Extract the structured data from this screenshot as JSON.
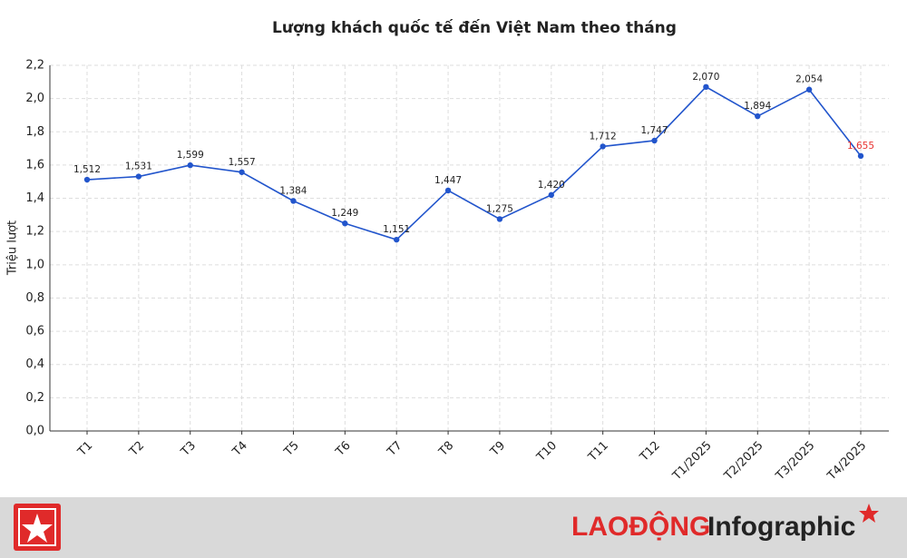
{
  "chart_data": {
    "type": "line",
    "title": "Lượng khách quốc tế đến Việt Nam theo tháng",
    "y_label": "Triệu lượt",
    "categories": [
      "T1",
      "T2",
      "T3",
      "T4",
      "T5",
      "T6",
      "T7",
      "T8",
      "T9",
      "T10",
      "T11",
      "T12",
      "T1/2025",
      "T2/2025",
      "T3/2025",
      "T4/2025"
    ],
    "series": [
      {
        "color": "#2255cc",
        "values": [
          1.512,
          1.531,
          1.599,
          1.557,
          1.384,
          1.249,
          1.151,
          1.447,
          1.275,
          1.42,
          1.712,
          1.747,
          2.07,
          1.894,
          2.054,
          1.655
        ],
        "value_labels": [
          "1,512",
          "1,531",
          "1,599",
          "1,557",
          "1,384",
          "1,249",
          "1,151",
          "1,447",
          "1,275",
          "1,420",
          "1,712",
          "1,747",
          "2,070",
          "1,894",
          "2,054",
          "1,655"
        ]
      }
    ],
    "last_label_color": "#e8312f",
    "ylim": [
      0,
      2.2
    ],
    "yticks": [
      {
        "value": 0,
        "label": "0,0"
      },
      {
        "value": 0.2,
        "label": "0,2"
      },
      {
        "value": 0.4,
        "label": "0,4"
      },
      {
        "value": 0.6,
        "label": "0,6"
      },
      {
        "value": 0.8,
        "label": "0,8"
      },
      {
        "value": 1.0,
        "label": "1,0"
      },
      {
        "value": 1.2,
        "label": "1,2"
      },
      {
        "value": 1.4,
        "label": "1,4"
      },
      {
        "value": 1.6,
        "label": "1,6"
      },
      {
        "value": 1.8,
        "label": "1,8"
      },
      {
        "value": 2.0,
        "label": "2,0"
      },
      {
        "value": 2.2,
        "label": "2,2"
      }
    ],
    "grid": true
  },
  "footer": {
    "brand": "LAOĐỘNG",
    "label": "Infographic"
  }
}
